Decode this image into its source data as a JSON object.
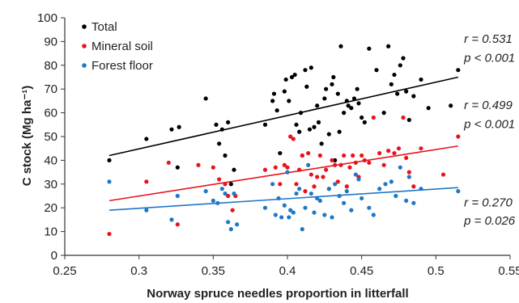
{
  "chart_data": {
    "type": "scatter",
    "title": "",
    "xlabel": "Norway spruce needles proportion in litterfall",
    "ylabel": "C stock  (Mg ha⁻¹)",
    "xlim": [
      0.25,
      0.55
    ],
    "ylim": [
      0,
      100
    ],
    "x_ticks": [
      0.25,
      0.3,
      0.35,
      0.4,
      0.45,
      0.5,
      0.55
    ],
    "x_tick_labels": [
      "0.25",
      "0.3",
      "0.35",
      "0.4",
      "0.45",
      "0.5",
      "0.55"
    ],
    "y_ticks": [
      0,
      10,
      20,
      30,
      40,
      50,
      60,
      70,
      80,
      90,
      100
    ],
    "grid": false,
    "legend_position": "top-left",
    "series": [
      {
        "name": "Total",
        "color": "#000000",
        "trend": {
          "x": [
            0.28,
            0.515
          ],
          "y": [
            42,
            75
          ]
        },
        "points": [
          [
            0.28,
            40
          ],
          [
            0.305,
            49
          ],
          [
            0.322,
            53
          ],
          [
            0.327,
            54
          ],
          [
            0.326,
            37
          ],
          [
            0.345,
            66
          ],
          [
            0.352,
            55
          ],
          [
            0.354,
            47
          ],
          [
            0.356,
            53
          ],
          [
            0.358,
            42
          ],
          [
            0.36,
            56
          ],
          [
            0.364,
            36
          ],
          [
            0.362,
            30
          ],
          [
            0.385,
            55
          ],
          [
            0.39,
            65
          ],
          [
            0.391,
            68
          ],
          [
            0.393,
            61
          ],
          [
            0.395,
            43
          ],
          [
            0.398,
            69
          ],
          [
            0.399,
            74
          ],
          [
            0.401,
            65
          ],
          [
            0.403,
            75
          ],
          [
            0.405,
            76
          ],
          [
            0.406,
            55
          ],
          [
            0.408,
            52
          ],
          [
            0.409,
            60
          ],
          [
            0.41,
            42
          ],
          [
            0.412,
            78
          ],
          [
            0.413,
            71
          ],
          [
            0.415,
            53
          ],
          [
            0.416,
            79
          ],
          [
            0.418,
            54
          ],
          [
            0.42,
            63
          ],
          [
            0.421,
            56
          ],
          [
            0.423,
            47
          ],
          [
            0.425,
            66
          ],
          [
            0.426,
            70
          ],
          [
            0.428,
            51
          ],
          [
            0.43,
            72
          ],
          [
            0.431,
            75
          ],
          [
            0.432,
            40
          ],
          [
            0.434,
            68
          ],
          [
            0.435,
            52
          ],
          [
            0.436,
            88
          ],
          [
            0.438,
            60
          ],
          [
            0.44,
            65
          ],
          [
            0.441,
            63
          ],
          [
            0.443,
            62
          ],
          [
            0.445,
            66
          ],
          [
            0.447,
            70
          ],
          [
            0.448,
            64
          ],
          [
            0.45,
            58
          ],
          [
            0.452,
            56
          ],
          [
            0.455,
            87
          ],
          [
            0.46,
            78
          ],
          [
            0.465,
            60
          ],
          [
            0.468,
            88
          ],
          [
            0.47,
            72
          ],
          [
            0.472,
            76
          ],
          [
            0.474,
            68
          ],
          [
            0.476,
            80
          ],
          [
            0.478,
            83
          ],
          [
            0.48,
            69
          ],
          [
            0.482,
            57
          ],
          [
            0.485,
            67
          ],
          [
            0.49,
            74
          ],
          [
            0.495,
            62
          ],
          [
            0.51,
            63
          ],
          [
            0.515,
            78
          ]
        ]
      },
      {
        "name": "Mineral soil",
        "color": "#e8131b",
        "trend": {
          "x": [
            0.28,
            0.515
          ],
          "y": [
            23,
            46
          ]
        },
        "points": [
          [
            0.28,
            9
          ],
          [
            0.305,
            31
          ],
          [
            0.32,
            39
          ],
          [
            0.326,
            13
          ],
          [
            0.34,
            38
          ],
          [
            0.35,
            37
          ],
          [
            0.354,
            32
          ],
          [
            0.358,
            30
          ],
          [
            0.36,
            25
          ],
          [
            0.363,
            19
          ],
          [
            0.365,
            25
          ],
          [
            0.385,
            36
          ],
          [
            0.392,
            37
          ],
          [
            0.395,
            30
          ],
          [
            0.398,
            38
          ],
          [
            0.4,
            37
          ],
          [
            0.402,
            50
          ],
          [
            0.404,
            49
          ],
          [
            0.406,
            30
          ],
          [
            0.408,
            36
          ],
          [
            0.41,
            42
          ],
          [
            0.412,
            27
          ],
          [
            0.414,
            43
          ],
          [
            0.416,
            34
          ],
          [
            0.418,
            29
          ],
          [
            0.42,
            33
          ],
          [
            0.422,
            42
          ],
          [
            0.424,
            33
          ],
          [
            0.426,
            36
          ],
          [
            0.428,
            28
          ],
          [
            0.43,
            40
          ],
          [
            0.432,
            38
          ],
          [
            0.434,
            31
          ],
          [
            0.436,
            38
          ],
          [
            0.438,
            42
          ],
          [
            0.44,
            29
          ],
          [
            0.442,
            37
          ],
          [
            0.444,
            42
          ],
          [
            0.446,
            39
          ],
          [
            0.448,
            33
          ],
          [
            0.45,
            42
          ],
          [
            0.452,
            40
          ],
          [
            0.455,
            39
          ],
          [
            0.458,
            58
          ],
          [
            0.462,
            43
          ],
          [
            0.465,
            38
          ],
          [
            0.468,
            44
          ],
          [
            0.472,
            43
          ],
          [
            0.475,
            45
          ],
          [
            0.478,
            58
          ],
          [
            0.48,
            41
          ],
          [
            0.482,
            35
          ],
          [
            0.485,
            29
          ],
          [
            0.49,
            45
          ],
          [
            0.505,
            34
          ],
          [
            0.515,
            50
          ]
        ]
      },
      {
        "name": "Forest floor",
        "color": "#1f77c8",
        "trend": {
          "x": [
            0.28,
            0.515
          ],
          "y": [
            19,
            28.5
          ]
        },
        "points": [
          [
            0.28,
            31
          ],
          [
            0.305,
            19
          ],
          [
            0.322,
            15
          ],
          [
            0.326,
            25
          ],
          [
            0.345,
            27
          ],
          [
            0.35,
            23
          ],
          [
            0.353,
            22
          ],
          [
            0.356,
            28
          ],
          [
            0.358,
            26
          ],
          [
            0.36,
            14
          ],
          [
            0.362,
            11
          ],
          [
            0.364,
            26
          ],
          [
            0.366,
            13
          ],
          [
            0.385,
            20
          ],
          [
            0.39,
            30
          ],
          [
            0.392,
            17
          ],
          [
            0.394,
            24
          ],
          [
            0.396,
            16
          ],
          [
            0.398,
            21
          ],
          [
            0.4,
            35
          ],
          [
            0.401,
            16
          ],
          [
            0.402,
            19
          ],
          [
            0.404,
            18
          ],
          [
            0.406,
            26
          ],
          [
            0.408,
            28
          ],
          [
            0.41,
            11
          ],
          [
            0.412,
            20
          ],
          [
            0.414,
            38
          ],
          [
            0.416,
            26
          ],
          [
            0.418,
            18
          ],
          [
            0.42,
            24
          ],
          [
            0.422,
            23
          ],
          [
            0.425,
            17
          ],
          [
            0.428,
            28
          ],
          [
            0.43,
            16
          ],
          [
            0.432,
            30
          ],
          [
            0.435,
            25
          ],
          [
            0.438,
            22
          ],
          [
            0.44,
            27
          ],
          [
            0.443,
            19
          ],
          [
            0.446,
            34
          ],
          [
            0.448,
            32
          ],
          [
            0.45,
            24
          ],
          [
            0.455,
            20
          ],
          [
            0.458,
            17
          ],
          [
            0.462,
            28
          ],
          [
            0.466,
            30
          ],
          [
            0.47,
            31
          ],
          [
            0.473,
            25
          ],
          [
            0.476,
            37
          ],
          [
            0.48,
            23
          ],
          [
            0.482,
            33
          ],
          [
            0.485,
            22
          ],
          [
            0.49,
            28
          ],
          [
            0.515,
            27
          ]
        ]
      }
    ],
    "annotations": [
      {
        "id": "total",
        "r": "r = 0.531",
        "p": "p < 0.001",
        "x": 0.519,
        "y_r": 89.5,
        "y_p": 81.5
      },
      {
        "id": "mineral",
        "r": "r = 0.499",
        "p": "p < 0.001",
        "x": 0.519,
        "y_r": 61.5,
        "y_p": 53.5
      },
      {
        "id": "forest",
        "r": "r = 0.270",
        "p": "p = 0.026",
        "x": 0.519,
        "y_r": 20.5,
        "y_p": 13
      }
    ]
  }
}
